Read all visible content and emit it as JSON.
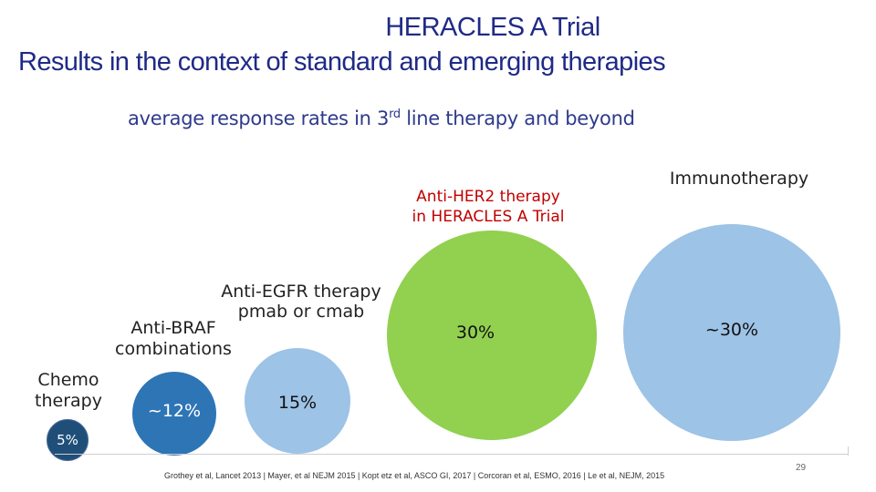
{
  "title": "HERACLES A Trial",
  "subtitle": "Results in the context of standard and emerging therapies",
  "caption_main": "average response rates in 3",
  "caption_sup": "rd",
  "caption_rest": " line therapy and beyond",
  "bubbles": [
    {
      "label_lines": [
        "Chemo",
        "therapy"
      ],
      "value": "5%",
      "color": "#1f4e79"
    },
    {
      "label_lines": [
        "Anti-BRAF",
        "combinations"
      ],
      "value": "~12%",
      "color": "#2e75b6"
    },
    {
      "label_lines": [
        "Anti-EGFR therapy",
        "pmab or cmab"
      ],
      "value": "15%",
      "color": "#9dc3e6"
    },
    {
      "label_lines": [
        "Anti-HER2 therapy",
        "in HERACLES A Trial"
      ],
      "value": "30%",
      "color": "#92d050"
    },
    {
      "label_lines": [
        "Immunotherapy"
      ],
      "value": "~30%",
      "color": "#9dc3e6"
    }
  ],
  "footer": "Grothey et al, Lancet 2013 | Mayer, et al NEJM 2015 | Kopt etz et al, ASCO GI, 2017 | Corcoran et al, ESMO, 2016 | Le et al, NEJM, 2015",
  "page_number": "29"
}
